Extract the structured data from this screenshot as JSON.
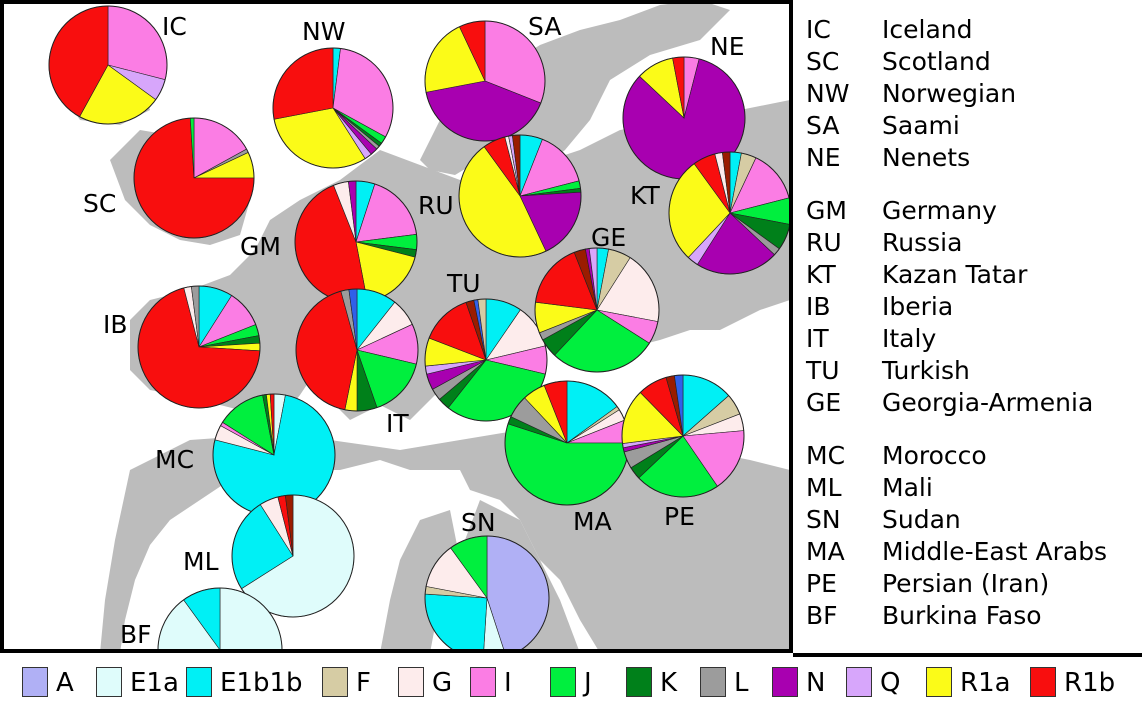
{
  "haplogroups": [
    {
      "id": "A",
      "label": "A",
      "color": "#b0b0f5"
    },
    {
      "id": "E1a",
      "label": "E1a",
      "color": "#dffcfb"
    },
    {
      "id": "E1b1b",
      "label": "E1b1b",
      "color": "#00f0f5"
    },
    {
      "id": "F",
      "label": "F",
      "color": "#d6cca4"
    },
    {
      "id": "G",
      "label": "G",
      "color": "#fdecec"
    },
    {
      "id": "I",
      "label": "I",
      "color": "#fb7de4"
    },
    {
      "id": "J",
      "label": "J",
      "color": "#00ef3e"
    },
    {
      "id": "K",
      "label": "K",
      "color": "#00801a"
    },
    {
      "id": "L",
      "label": "L",
      "color": "#9c9c9c"
    },
    {
      "id": "N",
      "label": "N",
      "color": "#a800b0"
    },
    {
      "id": "Q",
      "label": "Q",
      "color": "#d7a6fb"
    },
    {
      "id": "R1a",
      "label": "R1a",
      "color": "#fbfb18"
    },
    {
      "id": "R1b",
      "label": "R1b",
      "color": "#f80e0e"
    }
  ],
  "extra_colors": {
    "R2": "#9a1c00",
    "T": "#3060e8"
  },
  "key": {
    "groups": [
      [
        {
          "code": "IC",
          "name": "Iceland"
        },
        {
          "code": "SC",
          "name": "Scotland"
        },
        {
          "code": "NW",
          "name": "Norwegian"
        },
        {
          "code": "SA",
          "name": "Saami"
        },
        {
          "code": "NE",
          "name": "Nenets"
        }
      ],
      [
        {
          "code": "GM",
          "name": "Germany"
        },
        {
          "code": "RU",
          "name": "Russia"
        },
        {
          "code": "KT",
          "name": "Kazan Tatar"
        },
        {
          "code": "IB",
          "name": "Iberia"
        },
        {
          "code": "IT",
          "name": "Italy"
        },
        {
          "code": "TU",
          "name": "Turkish"
        },
        {
          "code": "GE",
          "name": "Georgia-Armenia"
        }
      ],
      [
        {
          "code": "MC",
          "name": "Morocco"
        },
        {
          "code": "ML",
          "name": "Mali"
        },
        {
          "code": "SN",
          "name": "Sudan"
        },
        {
          "code": "MA",
          "name": "Middle-East Arabs"
        },
        {
          "code": "PE",
          "name": "Persian (Iran)"
        },
        {
          "code": "BF",
          "name": "Burkina Faso"
        }
      ]
    ]
  },
  "populations": [
    {
      "code": "IC",
      "shares": {
        "I": 0.29,
        "Q": 0.06,
        "R1a": 0.23,
        "R1b": 0.42
      }
    },
    {
      "code": "SC",
      "shares": {
        "I": 0.17,
        "L": 0.01,
        "R1a": 0.07,
        "R1b": 0.74,
        "J": 0.01
      }
    },
    {
      "code": "NW",
      "shares": {
        "E1b1b": 0.02,
        "I": 0.31,
        "J": 0.02,
        "K": 0.01,
        "L": 0.01,
        "N": 0.02,
        "Q": 0.02,
        "R1a": 0.31,
        "R1b": 0.28
      }
    },
    {
      "code": "SA",
      "shares": {
        "I": 0.31,
        "N": 0.41,
        "R1a": 0.21,
        "R1b": 0.07
      }
    },
    {
      "code": "NE",
      "shares": {
        "I": 0.04,
        "N": 0.83,
        "R1a": 0.1,
        "R1b": 0.03
      }
    },
    {
      "code": "GM",
      "shares": {
        "E1b1b": 0.05,
        "I": 0.18,
        "J": 0.04,
        "K": 0.02,
        "R1a": 0.18,
        "R1b": 0.47,
        "G": 0.04,
        "N": 0.02
      }
    },
    {
      "code": "RU",
      "shares": {
        "E1b1b": 0.06,
        "I": 0.15,
        "J": 0.02,
        "K": 0.01,
        "N": 0.19,
        "R1a": 0.47,
        "R1b": 0.06,
        "G": 0.01,
        "Q": 0.01,
        "R2": 0.02
      }
    },
    {
      "code": "KT",
      "shares": {
        "E1b1b": 0.03,
        "F": 0.04,
        "I": 0.14,
        "J": 0.07,
        "K": 0.07,
        "L": 0.02,
        "N": 0.22,
        "Q": 0.03,
        "R1a": 0.28,
        "R1b": 0.06,
        "G": 0.02,
        "R2": 0.02
      }
    },
    {
      "code": "IB",
      "shares": {
        "E1b1b": 0.09,
        "I": 0.1,
        "J": 0.03,
        "K": 0.02,
        "R1a": 0.02,
        "R1b": 0.7,
        "G": 0.02,
        "L": 0.02
      }
    },
    {
      "code": "IT",
      "shares": {
        "E1b1b": 0.1,
        "G": 0.07,
        "I": 0.1,
        "J": 0.15,
        "K": 0.05,
        "R1a": 0.03,
        "R1b": 0.4,
        "L": 0.02,
        "T": 0.02
      }
    },
    {
      "code": "TU",
      "shares": {
        "E1b1b": 0.09,
        "G": 0.11,
        "I": 0.07,
        "J": 0.3,
        "K": 0.03,
        "L": 0.03,
        "N": 0.04,
        "Q": 0.02,
        "R1a": 0.07,
        "R1b": 0.13,
        "R2": 0.02,
        "T": 0.01,
        "F": 0.02
      }
    },
    {
      "code": "GE",
      "shares": {
        "E1b1b": 0.03,
        "F": 0.06,
        "G": 0.19,
        "I": 0.06,
        "J": 0.28,
        "K": 0.05,
        "L": 0.02,
        "R1a": 0.08,
        "R1b": 0.17,
        "R2": 0.03,
        "N": 0.01,
        "Q": 0.02
      }
    },
    {
      "code": "MC",
      "shares": {
        "E1a": 0.03,
        "E1b1b": 0.76,
        "G": 0.04,
        "I": 0.01,
        "J": 0.13,
        "K": 0.01,
        "R1a": 0.01,
        "R1b": 0.01
      }
    },
    {
      "code": "ML",
      "shares": {
        "E1a": 0.66,
        "E1b1b": 0.25,
        "G": 0.05,
        "R1b": 0.02,
        "R2": 0.02
      }
    },
    {
      "code": "SN",
      "shares": {
        "A": 0.45,
        "E1a": 0.06,
        "E1b1b": 0.25,
        "F": 0.02,
        "G": 0.12,
        "J": 0.1
      }
    },
    {
      "code": "MA",
      "shares": {
        "E1b1b": 0.15,
        "F": 0.01,
        "G": 0.03,
        "I": 0.06,
        "J": 0.55,
        "K": 0.02,
        "L": 0.06,
        "R1a": 0.06,
        "R1b": 0.06
      }
    },
    {
      "code": "PE",
      "shares": {
        "E1b1b": 0.12,
        "F": 0.05,
        "G": 0.04,
        "I": 0.15,
        "J": 0.2,
        "K": 0.03,
        "L": 0.04,
        "N": 0.01,
        "Q": 0.01,
        "R1a": 0.13,
        "R1b": 0.07,
        "R2": 0.02,
        "T": 0.02
      }
    },
    {
      "code": "BF",
      "shares": {
        "E1a": 0.9,
        "E1b1b": 0.1
      }
    }
  ]
}
